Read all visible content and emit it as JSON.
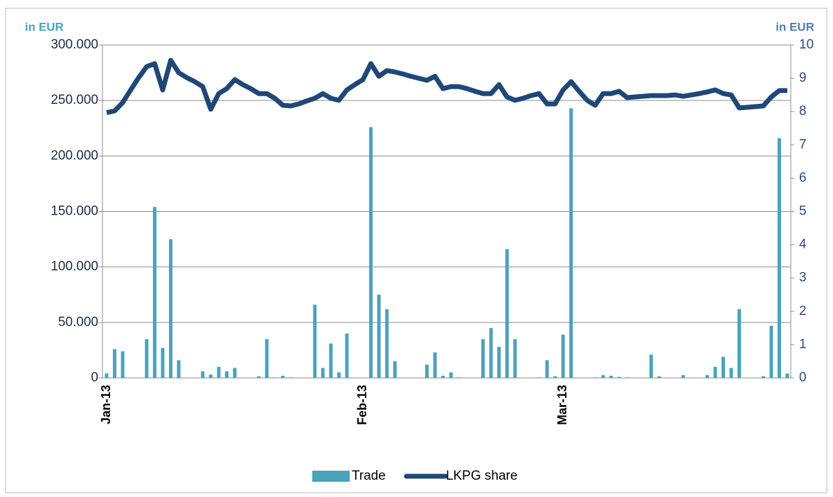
{
  "chart_data": {
    "type": "bar-line",
    "y_label": "in EUR",
    "y2_label": "in EUR",
    "categories": [
      "Jan-13",
      null,
      null,
      null,
      null,
      null,
      null,
      null,
      null,
      null,
      null,
      null,
      null,
      null,
      null,
      null,
      null,
      null,
      null,
      null,
      null,
      null,
      null,
      null,
      null,
      null,
      null,
      null,
      null,
      null,
      null,
      null,
      "Feb-13",
      null,
      null,
      null,
      null,
      null,
      null,
      null,
      null,
      null,
      null,
      null,
      null,
      null,
      null,
      null,
      null,
      null,
      null,
      null,
      null,
      null,
      null,
      null,
      null,
      "Mar-13",
      null,
      null,
      null,
      null,
      null,
      null,
      null,
      null,
      null,
      null,
      null,
      null,
      null,
      null,
      null,
      null,
      null,
      null,
      null,
      null,
      null,
      null,
      null,
      null,
      null,
      null,
      null,
      null
    ],
    "series": [
      {
        "name": "Trade",
        "type": "bar",
        "color": "#4aa3ba",
        "values": [
          4000,
          26000,
          24000,
          null,
          null,
          35000,
          154000,
          27000,
          125000,
          16000,
          null,
          null,
          6000,
          3000,
          10000,
          6000,
          9000,
          null,
          null,
          1500,
          35000,
          500,
          2000,
          500,
          null,
          null,
          66000,
          9000,
          31000,
          5000,
          40000,
          null,
          null,
          226000,
          75000,
          62000,
          15000,
          null,
          null,
          null,
          12000,
          23000,
          2000,
          5000,
          500,
          null,
          null,
          35000,
          45000,
          28000,
          116000,
          35000,
          null,
          null,
          500,
          16000,
          1500,
          39000,
          243000,
          null,
          null,
          500,
          2500,
          2000,
          1000,
          500,
          null,
          null,
          21000,
          1500,
          null,
          null,
          2500,
          null,
          null,
          2500,
          10000,
          19000,
          9000,
          62000,
          null,
          null,
          1500,
          47000,
          216000,
          4000
        ]
      },
      {
        "name": "LKPG share",
        "type": "line",
        "axis": "y2",
        "color": "#1f4777",
        "values": [
          7.97,
          8.02,
          8.27,
          8.65,
          9.02,
          9.35,
          9.44,
          8.65,
          9.54,
          9.17,
          9.02,
          8.9,
          8.75,
          8.07,
          8.54,
          8.69,
          8.96,
          8.81,
          8.69,
          8.54,
          8.54,
          8.4,
          8.19,
          8.17,
          8.23,
          8.32,
          8.4,
          8.54,
          8.4,
          8.34,
          8.65,
          8.81,
          8.96,
          9.44,
          9.06,
          9.23,
          9.19,
          9.13,
          9.06,
          9.0,
          8.94,
          9.06,
          8.69,
          8.75,
          8.75,
          8.69,
          8.61,
          8.54,
          8.54,
          8.81,
          8.44,
          8.34,
          8.4,
          8.48,
          8.54,
          8.23,
          8.23,
          8.65,
          8.9,
          8.61,
          8.34,
          8.19,
          8.54,
          8.54,
          8.61,
          8.42,
          8.44,
          8.46,
          8.48,
          8.48,
          8.48,
          8.5,
          8.46,
          8.5,
          8.54,
          8.59,
          8.65,
          8.54,
          8.5,
          8.11,
          8.13,
          8.15,
          8.17,
          8.44,
          8.63,
          8.63
        ]
      }
    ],
    "ylim": [
      0,
      300000
    ],
    "yticks": [
      0,
      {
        "value": 50000,
        "label": "50.000"
      },
      {
        "value": 100000,
        "label": "100.000"
      },
      {
        "value": 150000,
        "label": "150.000"
      },
      {
        "value": 200000,
        "label": "200.000"
      },
      {
        "value": 250000,
        "label": "250.000"
      },
      {
        "value": 300000,
        "label": "300.000"
      }
    ],
    "y2lim": [
      0,
      10
    ],
    "y2ticks": [
      0,
      1,
      2,
      3,
      4,
      5,
      6,
      7,
      8,
      9,
      10
    ],
    "grid": true,
    "legend": "bottom"
  }
}
